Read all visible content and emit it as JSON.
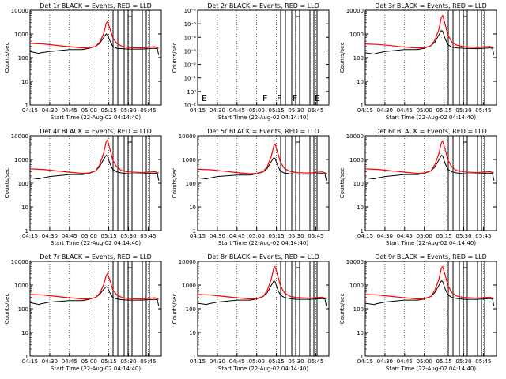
{
  "figure": {
    "colors": {
      "events": "#000000",
      "lld": "#ff0000",
      "axes": "#000000",
      "grid": "#000000"
    },
    "grid": "vertical dotted"
  },
  "chart_data": [
    {
      "type": "line",
      "title": "Det 1r BLACK = Events, RED = LLD",
      "xlabel": "Start Time (22-Aug-02 04:14:40)",
      "ylabel": "Counts/sec",
      "yscale": "log",
      "ylim": [
        1,
        10000
      ],
      "xlim": [
        "04:15",
        "05:55"
      ],
      "xticks": [
        "04:15",
        "04:30",
        "04:45",
        "05:00",
        "05:15",
        "05:30",
        "05:45"
      ],
      "yticks": [
        "1",
        "10",
        "100",
        "1000",
        "10000"
      ],
      "flags": [],
      "series": [
        {
          "name": "Events",
          "x": [
            "04:15",
            "04:22",
            "04:23",
            "04:30",
            "04:45",
            "04:55",
            "05:00",
            "05:05",
            "05:08",
            "05:11",
            "05:13",
            "05:14",
            "05:16",
            "05:18",
            "05:21",
            "05:25",
            "05:30",
            "05:40",
            "05:50",
            "05:52",
            "05:53"
          ],
          "values": [
            180,
            150,
            160,
            180,
            220,
            220,
            250,
            300,
            400,
            700,
            1000,
            900,
            500,
            300,
            250,
            240,
            230,
            230,
            250,
            240,
            130
          ]
        },
        {
          "name": "LLD",
          "x": [
            "04:15",
            "04:25",
            "04:35",
            "04:45",
            "04:55",
            "05:00",
            "05:05",
            "05:08",
            "05:11",
            "05:13",
            "05:14",
            "05:16",
            "05:18",
            "05:21",
            "05:25",
            "05:30",
            "05:40",
            "05:50",
            "05:53"
          ],
          "values": [
            400,
            380,
            330,
            290,
            260,
            260,
            300,
            450,
            1000,
            2800,
            3300,
            1600,
            700,
            400,
            300,
            270,
            260,
            290,
            250
          ]
        }
      ]
    },
    {
      "type": "line",
      "title": "Det 2r BLACK = Events, RED = LLD",
      "xlabel": "Start Time (22-Aug-02 04:14:40)",
      "ylabel": "Counts/sec",
      "yscale": "log",
      "ylim": [
        0.1,
        1e-06
      ],
      "xlim": [
        "04:15",
        "05:55"
      ],
      "xticks": [
        "04:15",
        "04:30",
        "04:45",
        "05:00",
        "05:15",
        "05:30",
        "05:45"
      ],
      "yticks": [
        "10⁻¹",
        "10⁰",
        "10⁻¹",
        "10⁻²",
        "10⁻³",
        "10⁻⁴",
        "10⁻⁵",
        "10⁻⁶"
      ],
      "flags": [
        "E",
        "F",
        "F",
        "F",
        "E"
      ],
      "series": []
    },
    {
      "type": "line",
      "title": "Det 3r BLACK = Events, RED = LLD",
      "xlabel": "Start Time (22-Aug-02 04:14:40)",
      "ylabel": "Counts/sec",
      "yscale": "log",
      "ylim": [
        1,
        10000
      ],
      "xlim": [
        "04:15",
        "05:55"
      ],
      "xticks": [
        "04:15",
        "04:30",
        "04:45",
        "05:00",
        "05:15",
        "05:30",
        "05:45"
      ],
      "yticks": [
        "1",
        "10",
        "100",
        "1000",
        "10000"
      ],
      "flags": [],
      "series": [
        {
          "name": "Events",
          "x": [
            "04:15",
            "04:22",
            "04:23",
            "04:30",
            "04:45",
            "04:55",
            "05:00",
            "05:05",
            "05:08",
            "05:11",
            "05:13",
            "05:14",
            "05:16",
            "05:18",
            "05:21",
            "05:25",
            "05:30",
            "05:40",
            "05:50",
            "05:52",
            "05:53"
          ],
          "values": [
            160,
            140,
            150,
            180,
            220,
            220,
            250,
            320,
            450,
            900,
            1400,
            1300,
            600,
            350,
            280,
            260,
            250,
            240,
            260,
            250,
            130
          ]
        },
        {
          "name": "LLD",
          "x": [
            "04:15",
            "04:25",
            "04:35",
            "04:45",
            "04:55",
            "05:00",
            "05:05",
            "05:08",
            "05:11",
            "05:13",
            "05:14",
            "05:16",
            "05:18",
            "05:21",
            "05:25",
            "05:30",
            "05:40",
            "05:50",
            "05:53"
          ],
          "values": [
            380,
            360,
            320,
            280,
            260,
            260,
            320,
            550,
            1500,
            5000,
            6000,
            2400,
            900,
            450,
            330,
            290,
            270,
            300,
            260
          ]
        }
      ]
    },
    {
      "type": "line",
      "title": "Det 4r BLACK = Events, RED = LLD",
      "xlabel": "Start Time (22-Aug-02 04:14:40)",
      "ylabel": "Counts/sec",
      "yscale": "log",
      "ylim": [
        1,
        10000
      ],
      "xlim": [
        "04:15",
        "05:55"
      ],
      "xticks": [
        "04:15",
        "04:30",
        "04:45",
        "05:00",
        "05:15",
        "05:30",
        "05:45"
      ],
      "yticks": [
        "1",
        "10",
        "100",
        "1000",
        "10000"
      ],
      "flags": [],
      "series": [
        {
          "name": "Events",
          "x": [
            "04:15",
            "04:22",
            "04:23",
            "04:30",
            "04:45",
            "04:55",
            "05:00",
            "05:05",
            "05:08",
            "05:11",
            "05:13",
            "05:14",
            "05:16",
            "05:18",
            "05:21",
            "05:25",
            "05:30",
            "05:40",
            "05:50",
            "05:52",
            "05:53"
          ],
          "values": [
            170,
            150,
            160,
            190,
            230,
            230,
            260,
            330,
            500,
            1000,
            1500,
            1400,
            650,
            380,
            300,
            270,
            250,
            250,
            270,
            260,
            130
          ]
        },
        {
          "name": "LLD",
          "x": [
            "04:15",
            "04:25",
            "04:35",
            "04:45",
            "04:55",
            "05:00",
            "05:05",
            "05:08",
            "05:11",
            "05:13",
            "05:14",
            "05:16",
            "05:18",
            "05:21",
            "05:25",
            "05:30",
            "05:40",
            "05:50",
            "05:53"
          ],
          "values": [
            400,
            380,
            330,
            290,
            260,
            270,
            330,
            600,
            1800,
            5500,
            6500,
            2600,
            950,
            480,
            340,
            300,
            280,
            310,
            270
          ]
        }
      ]
    },
    {
      "type": "line",
      "title": "Det 5r BLACK = Events, RED = LLD",
      "xlabel": "Start Time (22-Aug-02 04:14:40)",
      "ylabel": "Counts/sec",
      "yscale": "log",
      "ylim": [
        1,
        10000
      ],
      "xlim": [
        "04:15",
        "05:55"
      ],
      "xticks": [
        "04:15",
        "04:30",
        "04:45",
        "05:00",
        "05:15",
        "05:30",
        "05:45"
      ],
      "yticks": [
        "1",
        "10",
        "100",
        "1000",
        "10000"
      ],
      "flags": [],
      "series": [
        {
          "name": "Events",
          "x": [
            "04:15",
            "04:22",
            "04:23",
            "04:30",
            "04:45",
            "04:55",
            "05:00",
            "05:05",
            "05:08",
            "05:11",
            "05:13",
            "05:14",
            "05:16",
            "05:18",
            "05:21",
            "05:25",
            "05:30",
            "05:40",
            "05:50",
            "05:52",
            "05:53"
          ],
          "values": [
            170,
            150,
            160,
            190,
            220,
            220,
            250,
            300,
            420,
            800,
            1200,
            1100,
            550,
            320,
            270,
            250,
            240,
            240,
            260,
            250,
            130
          ]
        },
        {
          "name": "LLD",
          "x": [
            "04:15",
            "04:25",
            "04:35",
            "04:45",
            "04:55",
            "05:00",
            "05:05",
            "05:08",
            "05:11",
            "05:13",
            "05:14",
            "05:16",
            "05:18",
            "05:21",
            "05:25",
            "05:30",
            "05:40",
            "05:50",
            "05:53"
          ],
          "values": [
            390,
            370,
            320,
            280,
            250,
            260,
            310,
            500,
            1300,
            3800,
            4500,
            1900,
            800,
            420,
            320,
            280,
            270,
            300,
            260
          ]
        }
      ]
    },
    {
      "type": "line",
      "title": "Det 6r BLACK = Events, RED = LLD",
      "xlabel": "Start Time (22-Aug-02 04:14:40)",
      "ylabel": "Counts/sec",
      "yscale": "log",
      "ylim": [
        1,
        10000
      ],
      "xlim": [
        "04:15",
        "05:55"
      ],
      "xticks": [
        "04:15",
        "04:30",
        "04:45",
        "05:00",
        "05:15",
        "05:30",
        "05:45"
      ],
      "yticks": [
        "1",
        "10",
        "100",
        "1000",
        "10000"
      ],
      "flags": [],
      "series": [
        {
          "name": "Events",
          "x": [
            "04:15",
            "04:22",
            "04:23",
            "04:30",
            "04:45",
            "04:55",
            "05:00",
            "05:05",
            "05:08",
            "05:11",
            "05:13",
            "05:14",
            "05:16",
            "05:18",
            "05:21",
            "05:25",
            "05:30",
            "05:40",
            "05:50",
            "05:52",
            "05:53"
          ],
          "values": [
            170,
            150,
            160,
            190,
            230,
            230,
            260,
            330,
            480,
            950,
            1500,
            1400,
            650,
            380,
            300,
            270,
            250,
            250,
            270,
            260,
            130
          ]
        },
        {
          "name": "LLD",
          "x": [
            "04:15",
            "04:25",
            "04:35",
            "04:45",
            "04:55",
            "05:00",
            "05:05",
            "05:08",
            "05:11",
            "05:13",
            "05:14",
            "05:16",
            "05:18",
            "05:21",
            "05:25",
            "05:30",
            "05:40",
            "05:50",
            "05:53"
          ],
          "values": [
            400,
            380,
            330,
            290,
            260,
            270,
            330,
            600,
            1700,
            5200,
            6000,
            2500,
            950,
            480,
            340,
            300,
            280,
            310,
            270
          ]
        }
      ]
    },
    {
      "type": "line",
      "title": "Det 7r BLACK = Events, RED = LLD",
      "xlabel": "Start Time (22-Aug-02 04:14:40)",
      "ylabel": "Counts/sec",
      "yscale": "log",
      "ylim": [
        1,
        10000
      ],
      "xlim": [
        "04:15",
        "05:55"
      ],
      "xticks": [
        "04:15",
        "04:30",
        "04:45",
        "05:00",
        "05:15",
        "05:30",
        "05:45"
      ],
      "yticks": [
        "1",
        "10",
        "100",
        "1000",
        "10000"
      ],
      "flags": [],
      "series": [
        {
          "name": "Events",
          "x": [
            "04:15",
            "04:22",
            "04:23",
            "04:30",
            "04:45",
            "04:55",
            "05:00",
            "05:05",
            "05:08",
            "05:11",
            "05:13",
            "05:14",
            "05:16",
            "05:18",
            "05:21",
            "05:25",
            "05:30",
            "05:40",
            "05:50",
            "05:52",
            "05:53"
          ],
          "values": [
            180,
            150,
            160,
            190,
            220,
            220,
            250,
            300,
            400,
            650,
            850,
            800,
            450,
            300,
            260,
            240,
            230,
            230,
            250,
            240,
            130
          ]
        },
        {
          "name": "LLD",
          "x": [
            "04:15",
            "04:25",
            "04:35",
            "04:45",
            "04:55",
            "05:00",
            "05:05",
            "05:08",
            "05:11",
            "05:13",
            "05:14",
            "05:16",
            "05:18",
            "05:21",
            "05:25",
            "05:30",
            "05:40",
            "05:50",
            "05:53"
          ],
          "values": [
            400,
            380,
            330,
            290,
            260,
            260,
            300,
            450,
            1000,
            2500,
            3000,
            1500,
            650,
            380,
            300,
            270,
            260,
            290,
            250
          ]
        }
      ]
    },
    {
      "type": "line",
      "title": "Det 8r BLACK = Events, RED = LLD",
      "xlabel": "Start Time (22-Aug-02 04:14:40)",
      "ylabel": "Counts/sec",
      "yscale": "log",
      "ylim": [
        1,
        10000
      ],
      "xlim": [
        "04:15",
        "05:55"
      ],
      "xticks": [
        "04:15",
        "04:30",
        "04:45",
        "05:00",
        "05:15",
        "05:30",
        "05:45"
      ],
      "yticks": [
        "1",
        "10",
        "100",
        "1000",
        "10000"
      ],
      "flags": [],
      "series": [
        {
          "name": "Events",
          "x": [
            "04:15",
            "04:22",
            "04:23",
            "04:30",
            "04:45",
            "04:55",
            "05:00",
            "05:05",
            "05:08",
            "05:11",
            "05:13",
            "05:14",
            "05:16",
            "05:18",
            "05:21",
            "05:25",
            "05:30",
            "05:40",
            "05:50",
            "05:52",
            "05:53"
          ],
          "values": [
            170,
            150,
            160,
            190,
            230,
            230,
            260,
            330,
            480,
            950,
            1500,
            1400,
            650,
            380,
            300,
            270,
            250,
            250,
            270,
            260,
            130
          ]
        },
        {
          "name": "LLD",
          "x": [
            "04:15",
            "04:25",
            "04:35",
            "04:45",
            "04:55",
            "05:00",
            "05:05",
            "05:08",
            "05:11",
            "05:13",
            "05:14",
            "05:16",
            "05:18",
            "05:21",
            "05:25",
            "05:30",
            "05:40",
            "05:50",
            "05:53"
          ],
          "values": [
            400,
            380,
            330,
            290,
            260,
            270,
            330,
            600,
            1700,
            5200,
            6000,
            2500,
            950,
            480,
            340,
            300,
            280,
            310,
            270
          ]
        }
      ]
    },
    {
      "type": "line",
      "title": "Det 9r BLACK = Events, RED = LLD",
      "xlabel": "Start Time (22-Aug-02 04:14:40)",
      "ylabel": "Counts/sec",
      "yscale": "log",
      "ylim": [
        1,
        10000
      ],
      "xlim": [
        "04:15",
        "05:55"
      ],
      "xticks": [
        "04:15",
        "04:30",
        "04:45",
        "05:00",
        "05:15",
        "05:30",
        "05:45"
      ],
      "yticks": [
        "1",
        "10",
        "100",
        "1000",
        "10000"
      ],
      "flags": [],
      "series": [
        {
          "name": "Events",
          "x": [
            "04:15",
            "04:22",
            "04:23",
            "04:30",
            "04:45",
            "04:55",
            "05:00",
            "05:05",
            "05:08",
            "05:11",
            "05:13",
            "05:14",
            "05:16",
            "05:18",
            "05:21",
            "05:25",
            "05:30",
            "05:40",
            "05:50",
            "05:52",
            "05:53"
          ],
          "values": [
            170,
            150,
            160,
            190,
            230,
            230,
            260,
            330,
            480,
            950,
            1500,
            1400,
            650,
            380,
            300,
            270,
            250,
            250,
            270,
            260,
            130
          ]
        },
        {
          "name": "LLD",
          "x": [
            "04:15",
            "04:25",
            "04:35",
            "04:45",
            "04:55",
            "05:00",
            "05:05",
            "05:08",
            "05:11",
            "05:13",
            "05:14",
            "05:16",
            "05:18",
            "05:21",
            "05:25",
            "05:30",
            "05:40",
            "05:50",
            "05:53"
          ],
          "values": [
            400,
            380,
            330,
            290,
            260,
            270,
            330,
            600,
            1700,
            5200,
            6000,
            2500,
            950,
            480,
            340,
            300,
            280,
            310,
            270
          ]
        }
      ]
    }
  ]
}
